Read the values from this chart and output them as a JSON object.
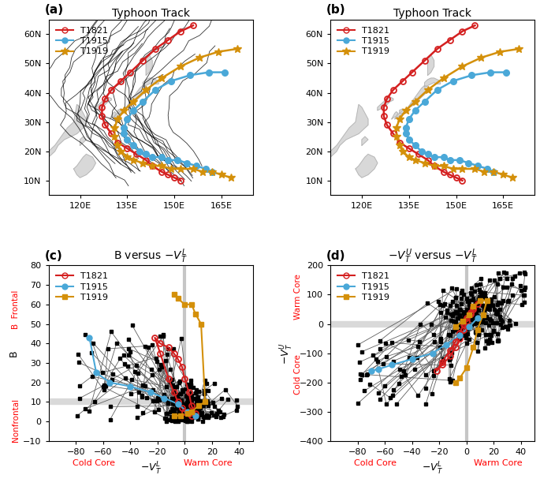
{
  "color_T1821": "#d42020",
  "color_T1915": "#4aa8d8",
  "color_T1919": "#d4900a",
  "map_xlim": [
    110,
    175
  ],
  "map_ylim": [
    5,
    65
  ],
  "panel_c_xlim": [
    -100,
    50
  ],
  "panel_c_ylim": [
    -10,
    80
  ],
  "panel_d_xlim": [
    -100,
    50
  ],
  "panel_d_ylim": [
    -400,
    200
  ],
  "t1821_lon": [
    152,
    150,
    148,
    146,
    143,
    141,
    138,
    135,
    132,
    130,
    128,
    127,
    127,
    128,
    130,
    133,
    136,
    140,
    144,
    148,
    152,
    156
  ],
  "t1821_lat": [
    10,
    11,
    12,
    13,
    15,
    17,
    19,
    21,
    23,
    26,
    29,
    32,
    35,
    38,
    41,
    44,
    47,
    51,
    55,
    58,
    61,
    63
  ],
  "t1915_lon": [
    162,
    160,
    157,
    154,
    151,
    148,
    146,
    143,
    141,
    139,
    137,
    135,
    134,
    134,
    135,
    137,
    140,
    144,
    149,
    155,
    161,
    166
  ],
  "t1915_lat": [
    13,
    14,
    15,
    16,
    17,
    17,
    18,
    18,
    19,
    20,
    22,
    24,
    26,
    28,
    31,
    34,
    37,
    41,
    44,
    46,
    47,
    47
  ],
  "t1919_lon": [
    168,
    165,
    162,
    159,
    156,
    152,
    149,
    146,
    143,
    140,
    137,
    135,
    133,
    132,
    131,
    131,
    132,
    134,
    137,
    141,
    146,
    152,
    158,
    164,
    170
  ],
  "t1919_lat": [
    11,
    12,
    13,
    13,
    14,
    14,
    14,
    15,
    15,
    16,
    17,
    18,
    20,
    22,
    25,
    28,
    31,
    34,
    37,
    41,
    45,
    49,
    52,
    54,
    55
  ],
  "bg_seeds": [
    10,
    11,
    12,
    13,
    14,
    15,
    16,
    17,
    18,
    19,
    20,
    21,
    22,
    23,
    24,
    25,
    26,
    27,
    28,
    29,
    30,
    31,
    32,
    33,
    34
  ],
  "seed_c": 42,
  "seed_d": 123,
  "n_bg_c": 300,
  "n_bg_d": 300
}
